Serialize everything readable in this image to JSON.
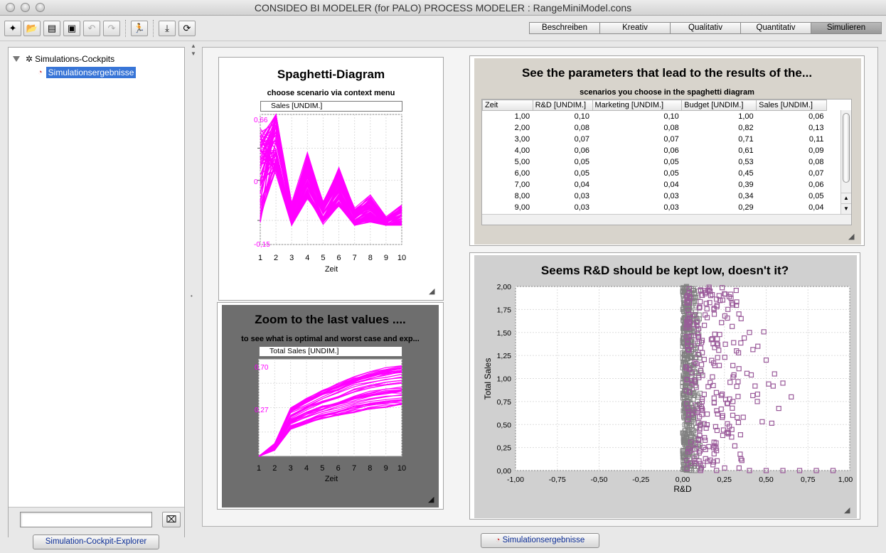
{
  "window": {
    "title": "CONSIDEO BI MODELER (for PALO) PROCESS MODELER : RangeMiniModel.cons"
  },
  "toolbar": {
    "buttons": [
      {
        "icon": "new-document-icon",
        "glyph": "✦"
      },
      {
        "icon": "open-folder-icon",
        "glyph": "📂"
      },
      {
        "icon": "copy-icon",
        "glyph": "▤"
      },
      {
        "icon": "save-icon",
        "glyph": "▣"
      },
      {
        "icon": "undo-icon",
        "glyph": "↶"
      },
      {
        "icon": "redo-icon",
        "glyph": "↷"
      },
      {
        "icon": "run-icon",
        "glyph": "🏃"
      },
      {
        "icon": "import-icon",
        "glyph": "⤓"
      },
      {
        "icon": "refresh-icon",
        "glyph": "⟳"
      }
    ]
  },
  "mode_tabs": [
    "Beschreiben",
    "Kreativ",
    "Qualitativ",
    "Quantitativ",
    "Simulieren"
  ],
  "tree": {
    "root": "Simulations-Cockpits",
    "child": "Simulationsergebnisse"
  },
  "left_footer": {
    "filter_value": "",
    "bottom_tab": "Simulation-Cockpit-Explorer"
  },
  "main_bottom_tab": "Simulationsergebnisse",
  "spaghetti": {
    "title": "Spaghetti-Diagram",
    "subtitle": "choose scenario via context menu",
    "legend": "Sales [UNDIM.]",
    "ytick_top": "0,66",
    "ytick_mid": "0",
    "ytick_bottom": "-0,15",
    "xticks": [
      "1",
      "2",
      "3",
      "4",
      "5",
      "6",
      "7",
      "8",
      "9",
      "10"
    ],
    "xlabel": "Zeit",
    "line_color": "#ff00ff"
  },
  "zoom": {
    "title": "Zoom to the last values ....",
    "subtitle": "to see what is optimal and worst case and exp...",
    "legend": "Total Sales [UNDIM.]",
    "ytick_top": "0,70",
    "ytick_mid": "0,27",
    "xticks": [
      "1",
      "2",
      "3",
      "4",
      "5",
      "6",
      "7",
      "8",
      "9",
      "10"
    ],
    "xlabel": "Zeit",
    "line_color": "#ff00ff"
  },
  "params": {
    "title": "See the parameters that lead to the results of the...",
    "subtitle": "scenarios you choose in the spaghetti diagram",
    "columns": [
      "Zeit",
      "R&D [UNDIM.]",
      "Marketing [UNDIM.]",
      "Budget [UNDIM.]",
      "Sales [UNDIM.]"
    ],
    "rows": [
      [
        "1,00",
        "0,10",
        "0,10",
        "1,00",
        "0,06"
      ],
      [
        "2,00",
        "0,08",
        "0,08",
        "0,82",
        "0,13"
      ],
      [
        "3,00",
        "0,07",
        "0,07",
        "0,71",
        "0,11"
      ],
      [
        "4,00",
        "0,06",
        "0,06",
        "0,61",
        "0,09"
      ],
      [
        "5,00",
        "0,05",
        "0,05",
        "0,53",
        "0,08"
      ],
      [
        "6,00",
        "0,05",
        "0,05",
        "0,45",
        "0,07"
      ],
      [
        "7,00",
        "0,04",
        "0,04",
        "0,39",
        "0,06"
      ],
      [
        "8,00",
        "0,03",
        "0,03",
        "0,34",
        "0,05"
      ],
      [
        "9,00",
        "0,03",
        "0,03",
        "0,29",
        "0,04"
      ]
    ]
  },
  "chart_data": [
    {
      "type": "line",
      "title": "Spaghetti-Diagram",
      "subtitle": "choose scenario via context menu",
      "xlabel": "Zeit",
      "ylabel": "",
      "x": [
        1,
        2,
        3,
        4,
        5,
        6,
        7,
        8,
        9,
        10
      ],
      "xlim": [
        1,
        10
      ],
      "ylim": [
        -0.15,
        0.66
      ],
      "series": [
        {
          "name": "Sales [UNDIM.]",
          "values": [
            0.58,
            0.66,
            0.08,
            0.38,
            0.1,
            0.3,
            0.05,
            0.13,
            0.0,
            0.07
          ]
        }
      ]
    },
    {
      "type": "line",
      "title": "Zoom to the last values ....",
      "subtitle": "to see what is optimal and worst case and exp...",
      "xlabel": "Zeit",
      "ylabel": "",
      "x": [
        1,
        2,
        3,
        4,
        5,
        6,
        7,
        8,
        9,
        10
      ],
      "xlim": [
        1,
        10
      ],
      "series": [
        {
          "name": "Total Sales [UNDIM.]",
          "values": [
            0.0,
            0.1,
            0.4,
            0.48,
            0.55,
            0.6,
            0.66,
            0.7,
            0.73,
            0.75
          ]
        }
      ]
    },
    {
      "type": "scatter",
      "title": "Seems R&D should be kept low, doesn't it?",
      "xlabel": "R&D",
      "ylabel": "Total Sales",
      "xlim": [
        -1.0,
        1.0
      ],
      "ylim": [
        0.0,
        2.0
      ],
      "xticks": [
        "-1,00",
        "-0,75",
        "-0,50",
        "-0,25",
        "0,00",
        "0,25",
        "0,50",
        "0,75",
        "1,00"
      ],
      "yticks": [
        "0,00",
        "0,25",
        "0,50",
        "0,75",
        "1,00",
        "1,25",
        "1,50",
        "1,75",
        "2,00"
      ],
      "marker_color": "#9a5a9a",
      "dense_color": "#808080",
      "series": [
        {
          "name": "",
          "points": [
            [
              0.25,
              1.92
            ],
            [
              0.3,
              1.8
            ],
            [
              0.35,
              1.65
            ],
            [
              0.4,
              1.5
            ],
            [
              0.45,
              1.35
            ],
            [
              0.5,
              1.2
            ],
            [
              0.55,
              1.05
            ],
            [
              0.6,
              0.95
            ],
            [
              0.65,
              0.8
            ],
            [
              0.3,
              0.6
            ],
            [
              0.2,
              0.3
            ],
            [
              0.15,
              0.1
            ],
            [
              0.4,
              0.0
            ],
            [
              0.5,
              0.0
            ],
            [
              0.6,
              0.0
            ],
            [
              0.7,
              0.0
            ],
            [
              0.8,
              0.0
            ],
            [
              0.9,
              0.0
            ]
          ]
        }
      ]
    }
  ]
}
